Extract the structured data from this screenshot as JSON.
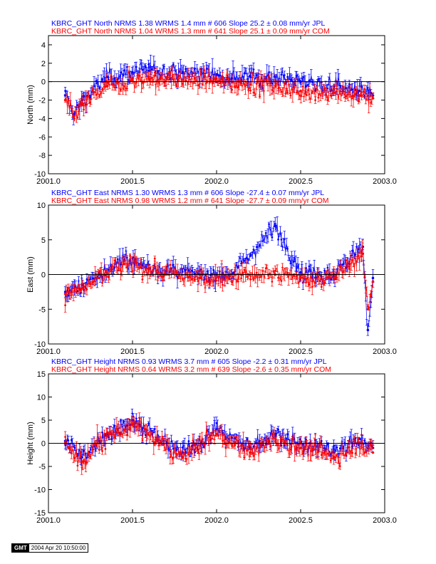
{
  "gmt_stamp": {
    "logo": "GMT",
    "date": "2004 Apr 20 10:50:00"
  },
  "colors": {
    "jpl": "#0000ff",
    "com": "#ff0000",
    "axis": "#000000"
  },
  "chart_data": [
    {
      "type": "scatter",
      "title_lines": [
        "KBRC_GHT North NRMS 1.38 WRMS  1.4 mm # 606 Slope   25.2 ±  0.08 mm/yr JPL",
        "KBRC_GHT North NRMS 1.04 WRMS  1.3 mm # 641 Slope   25.1 ±  0.09 mm/yr COM"
      ],
      "ylabel": "North (mm)",
      "xlim": [
        2001.0,
        2003.0
      ],
      "ylim": [
        -10,
        5
      ],
      "xticks": [
        "2001.0",
        "2001.5",
        "2002.0",
        "2002.5",
        "2003.0"
      ],
      "yticks": [
        -10,
        -8,
        -6,
        -4,
        -2,
        0,
        2,
        4
      ],
      "grid": false,
      "series": [
        {
          "name": "JPL",
          "color": "#0000ff",
          "x": [
            2001.1,
            2001.15,
            2001.2,
            2001.35,
            2001.5,
            2001.6,
            2001.8,
            2002.0,
            2002.2,
            2002.35,
            2002.5,
            2002.7,
            2002.85,
            2002.93
          ],
          "y": [
            -1.5,
            -3.5,
            -2.0,
            0.5,
            1.0,
            1.2,
            1.0,
            0.8,
            0.6,
            0.5,
            0.0,
            -0.5,
            -1.0,
            -1.5
          ]
        },
        {
          "name": "COM",
          "color": "#ff0000",
          "x": [
            2001.1,
            2001.15,
            2001.2,
            2001.35,
            2001.5,
            2001.6,
            2001.8,
            2002.0,
            2002.2,
            2002.35,
            2002.5,
            2002.7,
            2002.85,
            2002.93
          ],
          "y": [
            -2.0,
            -3.8,
            -2.5,
            -0.5,
            0.2,
            0.3,
            0.2,
            0.0,
            -0.3,
            -0.5,
            -1.0,
            -1.2,
            -1.5,
            -1.8
          ]
        }
      ]
    },
    {
      "type": "scatter",
      "title_lines": [
        "KBRC_GHT East NRMS 1.30 WRMS  1.3 mm # 606 Slope  -27.4 ±  0.07 mm/yr JPL",
        "KBRC_GHT East NRMS 0.98 WRMS  1.2 mm # 641 Slope  -27.7 ±  0.09 mm/yr COM"
      ],
      "ylabel": "East (mm)",
      "xlim": [
        2001.0,
        2003.0
      ],
      "ylim": [
        -10,
        10
      ],
      "xticks": [
        "2001.0",
        "2001.5",
        "2002.0",
        "2002.5",
        "2003.0"
      ],
      "yticks": [
        -10,
        -5,
        0,
        5,
        10
      ],
      "grid": false,
      "series": [
        {
          "name": "JPL",
          "color": "#0000ff",
          "x": [
            2001.1,
            2001.2,
            2001.3,
            2001.45,
            2001.55,
            2001.7,
            2001.9,
            2002.1,
            2002.35,
            2002.5,
            2002.7,
            2002.87,
            2002.9,
            2002.93
          ],
          "y": [
            -2.5,
            -1.5,
            0.0,
            2.0,
            1.5,
            0.5,
            0.0,
            0.2,
            7.0,
            0.3,
            0.0,
            4.0,
            -8.0,
            -0.5
          ]
        },
        {
          "name": "COM",
          "color": "#ff0000",
          "x": [
            2001.1,
            2001.2,
            2001.3,
            2001.45,
            2001.55,
            2001.7,
            2001.9,
            2002.1,
            2002.35,
            2002.5,
            2002.7,
            2002.87,
            2002.9,
            2002.93
          ],
          "y": [
            -2.8,
            -2.0,
            -0.5,
            1.5,
            1.0,
            0.0,
            -0.5,
            -0.3,
            0.0,
            -0.5,
            -0.5,
            3.0,
            -5.0,
            -1.0
          ]
        }
      ]
    },
    {
      "type": "scatter",
      "title_lines": [
        "KBRC_GHT Height NRMS 0.93 WRMS  3.7 mm # 605 Slope   -2.2 ±  0.31 mm/yr JPL",
        "KBRC_GHT Height NRMS 0.64 WRMS  3.2 mm # 639 Slope   -2.6 ±  0.35 mm/yr COM"
      ],
      "ylabel": "Height (mm)",
      "xlim": [
        2001.0,
        2003.0
      ],
      "ylim": [
        -15,
        15
      ],
      "xticks": [
        "2001.0",
        "2001.5",
        "2002.0",
        "2002.5",
        "2003.0"
      ],
      "yticks": [
        -15,
        -10,
        -5,
        0,
        5,
        10,
        15
      ],
      "grid": false,
      "series": [
        {
          "name": "JPL",
          "color": "#0000ff",
          "x": [
            2001.1,
            2001.2,
            2001.35,
            2001.5,
            2001.65,
            2001.8,
            2002.0,
            2002.2,
            2002.35,
            2002.5,
            2002.7,
            2002.85,
            2002.93
          ],
          "y": [
            0.5,
            -3.0,
            2.0,
            5.0,
            1.0,
            -2.0,
            3.0,
            -1.0,
            2.0,
            0.0,
            -2.0,
            1.0,
            -1.0
          ]
        },
        {
          "name": "COM",
          "color": "#ff0000",
          "x": [
            2001.1,
            2001.2,
            2001.35,
            2001.5,
            2001.65,
            2001.8,
            2002.0,
            2002.2,
            2002.35,
            2002.5,
            2002.7,
            2002.85,
            2002.93
          ],
          "y": [
            0.0,
            -4.0,
            1.5,
            4.0,
            0.5,
            -3.0,
            2.0,
            -2.0,
            1.0,
            -1.0,
            -3.0,
            0.0,
            -2.0
          ]
        }
      ]
    }
  ]
}
